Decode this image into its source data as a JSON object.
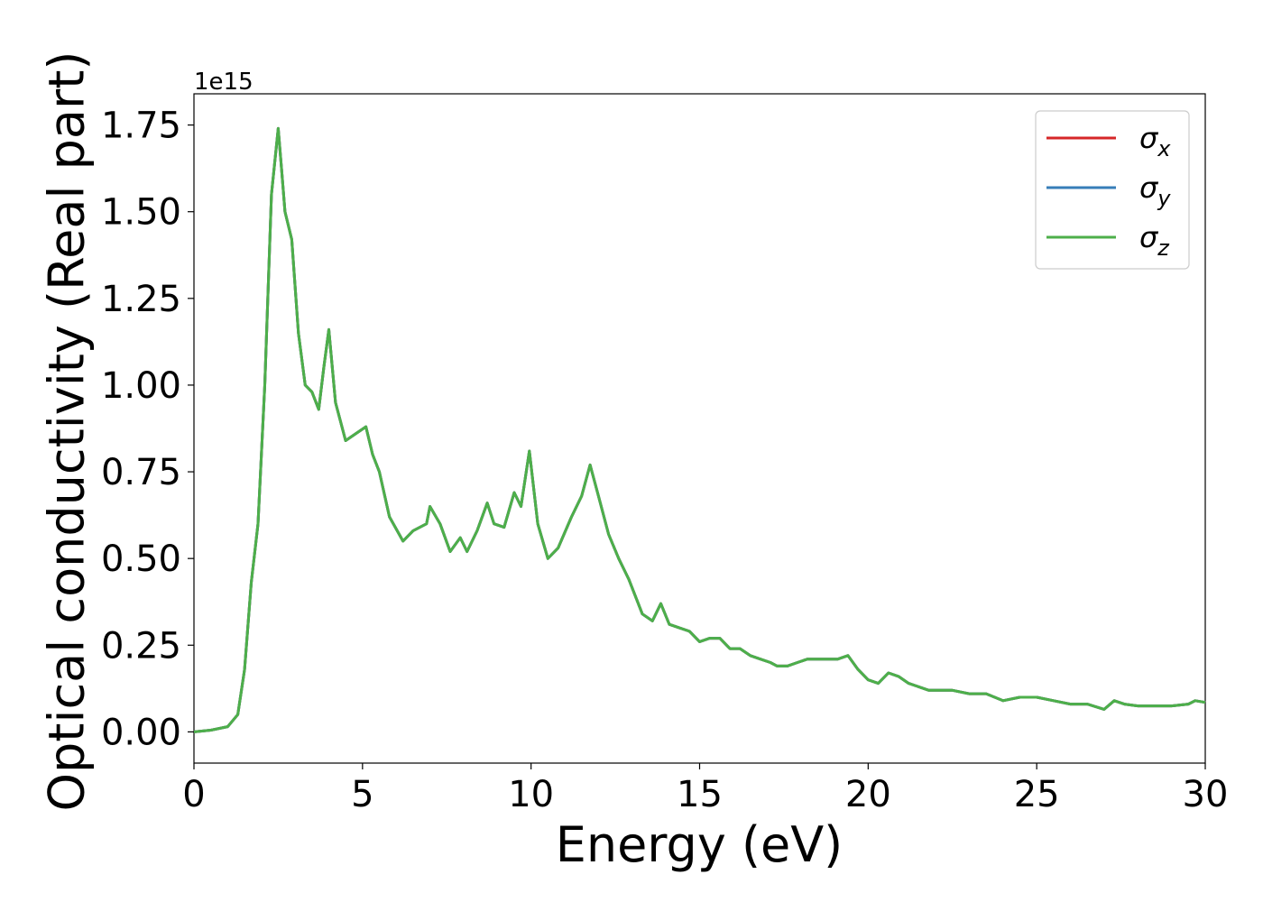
{
  "chart_data": {
    "type": "line",
    "xlabel": "Energy (eV)",
    "ylabel": "Optical conductivity (Real part)",
    "y_offset_label": "1e15",
    "xlim": [
      0,
      30
    ],
    "ylim": [
      -0.09,
      1.84
    ],
    "xticks": [
      0,
      5,
      10,
      15,
      20,
      25,
      30
    ],
    "xtick_labels": [
      "0",
      "5",
      "10",
      "15",
      "20",
      "25",
      "30"
    ],
    "yticks": [
      0.0,
      0.25,
      0.5,
      0.75,
      1.0,
      1.25,
      1.5,
      1.75
    ],
    "ytick_labels": [
      "0.00",
      "0.25",
      "0.50",
      "0.75",
      "1.00",
      "1.25",
      "1.50",
      "1.75"
    ],
    "grid": false,
    "legend_position": "top-right",
    "series": [
      {
        "name": "σx",
        "legend_base": "σ",
        "legend_sub": "x",
        "color": "#d62728",
        "same_as": "σz",
        "x": [],
        "y": []
      },
      {
        "name": "σy",
        "legend_base": "σ",
        "legend_sub": "y",
        "color": "#377eb8",
        "same_as": "σz",
        "x": [],
        "y": []
      },
      {
        "name": "σz",
        "legend_base": "σ",
        "legend_sub": "z",
        "color": "#4daf4a",
        "x": [
          0,
          0.5,
          1.0,
          1.3,
          1.5,
          1.7,
          1.9,
          2.1,
          2.3,
          2.5,
          2.6,
          2.7,
          2.9,
          3.1,
          3.3,
          3.5,
          3.7,
          3.85,
          4.0,
          4.2,
          4.5,
          4.8,
          5.1,
          5.3,
          5.5,
          5.8,
          6.2,
          6.5,
          6.9,
          7.0,
          7.3,
          7.6,
          7.9,
          8.1,
          8.4,
          8.7,
          8.9,
          9.2,
          9.5,
          9.7,
          9.95,
          10.2,
          10.5,
          10.8,
          11.2,
          11.5,
          11.75,
          12.0,
          12.3,
          12.6,
          12.9,
          13.3,
          13.6,
          13.85,
          14.1,
          14.4,
          14.7,
          15.0,
          15.3,
          15.6,
          15.9,
          16.2,
          16.5,
          16.8,
          17.1,
          17.3,
          17.6,
          17.9,
          18.2,
          18.5,
          18.8,
          19.1,
          19.4,
          19.7,
          20.0,
          20.3,
          20.6,
          20.9,
          21.2,
          21.5,
          21.8,
          22.1,
          22.5,
          23.0,
          23.5,
          24.0,
          24.5,
          25.0,
          25.5,
          26.0,
          26.5,
          27.0,
          27.3,
          27.6,
          28.0,
          28.5,
          29.0,
          29.5,
          29.7,
          30.0
        ],
        "y": [
          0.0,
          0.005,
          0.015,
          0.05,
          0.18,
          0.43,
          0.6,
          1.0,
          1.55,
          1.74,
          1.62,
          1.5,
          1.42,
          1.15,
          1.0,
          0.98,
          0.93,
          1.05,
          1.16,
          0.95,
          0.84,
          0.86,
          0.88,
          0.8,
          0.75,
          0.62,
          0.55,
          0.58,
          0.6,
          0.65,
          0.6,
          0.52,
          0.56,
          0.52,
          0.58,
          0.66,
          0.6,
          0.59,
          0.69,
          0.65,
          0.81,
          0.6,
          0.5,
          0.53,
          0.62,
          0.68,
          0.77,
          0.68,
          0.57,
          0.5,
          0.44,
          0.34,
          0.32,
          0.37,
          0.31,
          0.3,
          0.29,
          0.26,
          0.27,
          0.27,
          0.24,
          0.24,
          0.22,
          0.21,
          0.2,
          0.19,
          0.19,
          0.2,
          0.21,
          0.21,
          0.21,
          0.21,
          0.22,
          0.18,
          0.15,
          0.14,
          0.17,
          0.16,
          0.14,
          0.13,
          0.12,
          0.12,
          0.12,
          0.11,
          0.11,
          0.09,
          0.1,
          0.1,
          0.09,
          0.08,
          0.08,
          0.065,
          0.09,
          0.08,
          0.075,
          0.075,
          0.075,
          0.08,
          0.09,
          0.085
        ]
      }
    ]
  }
}
